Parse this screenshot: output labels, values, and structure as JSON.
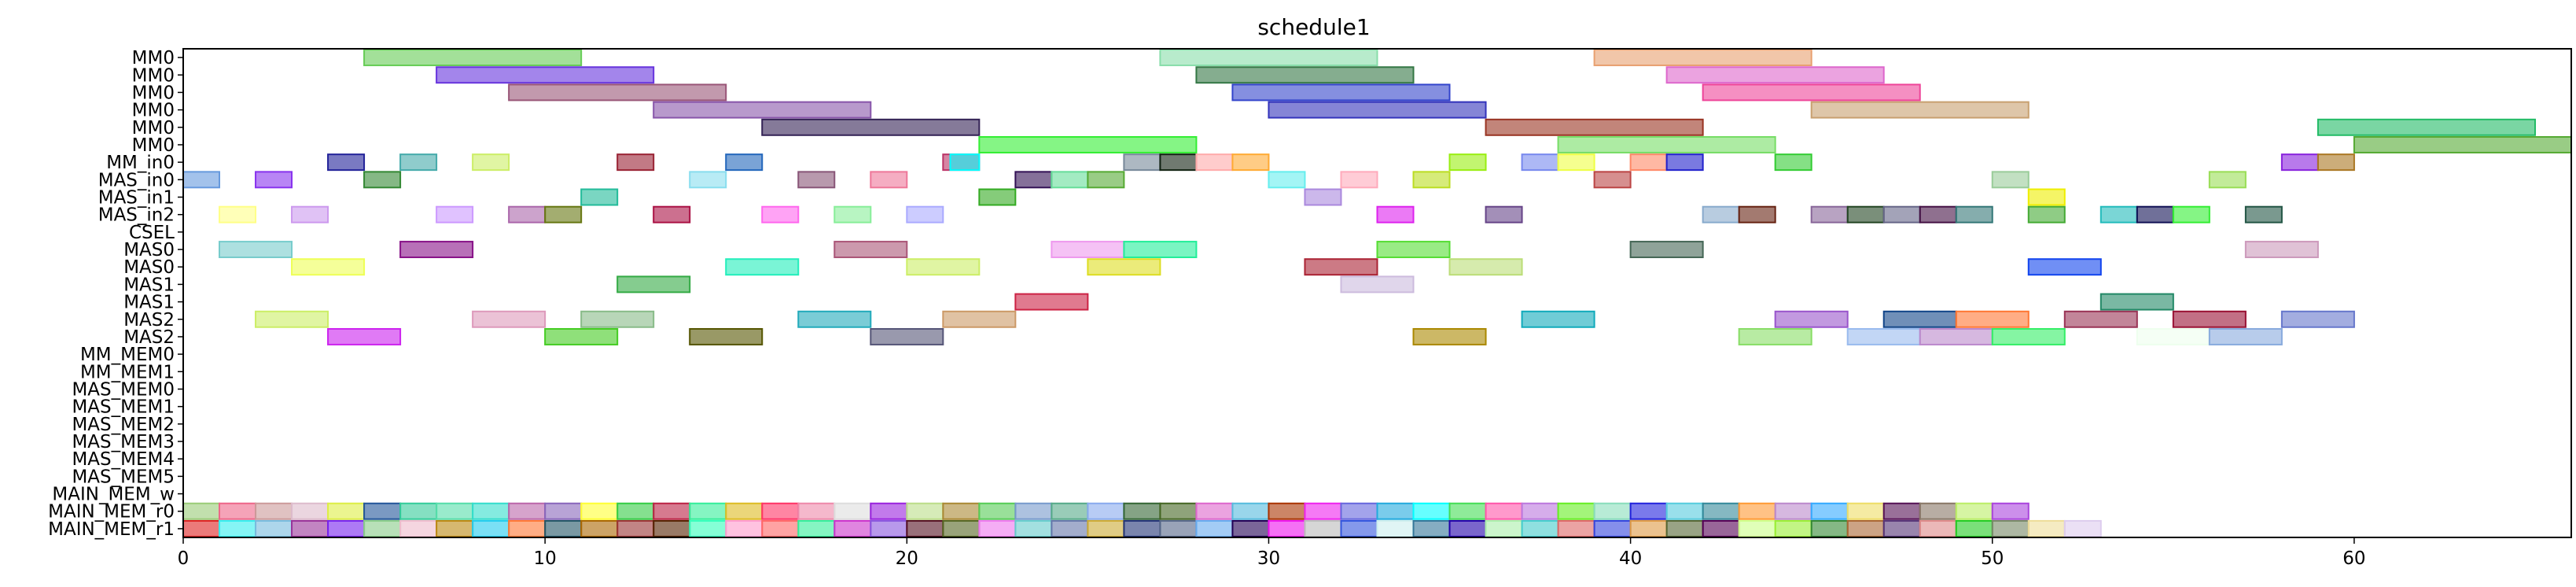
{
  "chart_data": {
    "type": "gantt",
    "title": "schedule1",
    "xlim": [
      0,
      66
    ],
    "x_ticks": [
      "0",
      "10",
      "20",
      "30",
      "40",
      "50",
      "60"
    ],
    "x_tick_values": [
      0,
      10,
      20,
      30,
      40,
      50,
      60
    ],
    "rows": [
      "MM0",
      "MM0",
      "MM0",
      "MM0",
      "MM0",
      "MM0",
      "MM_in0",
      "MAS_in0",
      "MAS_in1",
      "MAS_in2",
      "CSEL",
      "MAS0",
      "MAS0",
      "MAS1",
      "MAS1",
      "MAS2",
      "MAS2",
      "MM_MEM0",
      "MM_MEM1",
      "MAS_MEM0",
      "MAS_MEM1",
      "MAS_MEM2",
      "MAS_MEM3",
      "MAS_MEM4",
      "MAS_MEM5",
      "MAIN_MEM_w",
      "MAIN_MEM_r0",
      "MAIN_MEM_r1"
    ],
    "bars": [
      {
        "row": 0,
        "start": 5,
        "end": 11,
        "color": "#66cc55"
      },
      {
        "row": 0,
        "start": 27,
        "end": 33,
        "color": "#88ddaa"
      },
      {
        "row": 0,
        "start": 39,
        "end": 45,
        "color": "#e8a070"
      },
      {
        "row": 1,
        "start": 7,
        "end": 13,
        "color": "#6633dd"
      },
      {
        "row": 1,
        "start": 28,
        "end": 34,
        "color": "#337744"
      },
      {
        "row": 1,
        "start": 41,
        "end": 47,
        "color": "#dd66cc"
      },
      {
        "row": 2,
        "start": 9,
        "end": 15,
        "color": "#995577"
      },
      {
        "row": 2,
        "start": 29,
        "end": 35,
        "color": "#3344cc"
      },
      {
        "row": 2,
        "start": 42,
        "end": 48,
        "color": "#ee4499"
      },
      {
        "row": 3,
        "start": 13,
        "end": 19,
        "color": "#8855aa"
      },
      {
        "row": 3,
        "start": 30,
        "end": 36,
        "color": "#3333bb"
      },
      {
        "row": 3,
        "start": 45,
        "end": 51,
        "color": "#c8a070"
      },
      {
        "row": 4,
        "start": 16,
        "end": 22,
        "color": "#332255"
      },
      {
        "row": 4,
        "start": 36,
        "end": 42,
        "color": "#993322"
      },
      {
        "row": 4,
        "start": 59,
        "end": 65,
        "color": "#22bb66"
      },
      {
        "row": 5,
        "start": 22,
        "end": 28,
        "color": "#33ee33"
      },
      {
        "row": 5,
        "start": 38,
        "end": 44,
        "color": "#77dd66"
      },
      {
        "row": 5,
        "start": 60,
        "end": 66,
        "color": "#55aa33"
      },
      {
        "row": 6,
        "start": 4,
        "end": 5,
        "color": "#222299"
      },
      {
        "row": 6,
        "start": 6,
        "end": 7,
        "color": "#44aaaa"
      },
      {
        "row": 6,
        "start": 8,
        "end": 9,
        "color": "#ccee66"
      },
      {
        "row": 6,
        "start": 12,
        "end": 13,
        "color": "#992233"
      },
      {
        "row": 6,
        "start": 15,
        "end": 16,
        "color": "#2266bb"
      },
      {
        "row": 6,
        "start": 21,
        "end": 22,
        "color": "#bb3366"
      },
      {
        "row": 6,
        "start": 21.2,
        "end": 22,
        "color": "#00ffff"
      },
      {
        "row": 6,
        "start": 26,
        "end": 27,
        "color": "#778899"
      },
      {
        "row": 6,
        "start": 27,
        "end": 28,
        "color": "#112211"
      },
      {
        "row": 6,
        "start": 28,
        "end": 29,
        "color": "#ffaaaa"
      },
      {
        "row": 6,
        "start": 29,
        "end": 30,
        "color": "#ffaa33"
      },
      {
        "row": 6,
        "start": 35,
        "end": 36,
        "color": "#99ee11"
      },
      {
        "row": 6,
        "start": 37,
        "end": 38,
        "color": "#7788ee"
      },
      {
        "row": 6,
        "start": 38,
        "end": 39,
        "color": "#eeff44"
      },
      {
        "row": 6,
        "start": 40,
        "end": 41,
        "color": "#ff8866"
      },
      {
        "row": 6,
        "start": 41,
        "end": 42,
        "color": "#2222cc"
      },
      {
        "row": 6,
        "start": 44,
        "end": 45,
        "color": "#33cc33"
      },
      {
        "row": 6,
        "start": 58,
        "end": 59,
        "color": "#8822dd"
      },
      {
        "row": 6,
        "start": 59,
        "end": 60,
        "color": "#aa7722"
      },
      {
        "row": 7,
        "start": 0,
        "end": 1,
        "color": "#6699dd"
      },
      {
        "row": 7,
        "start": 2,
        "end": 3,
        "color": "#8833ee"
      },
      {
        "row": 7,
        "start": 5,
        "end": 6,
        "color": "#338833"
      },
      {
        "row": 7,
        "start": 14,
        "end": 15,
        "color": "#88ddee"
      },
      {
        "row": 7,
        "start": 17,
        "end": 18,
        "color": "#885577"
      },
      {
        "row": 7,
        "start": 19,
        "end": 20,
        "color": "#ee7799"
      },
      {
        "row": 7,
        "start": 23,
        "end": 24,
        "color": "#331155"
      },
      {
        "row": 7,
        "start": 24,
        "end": 25,
        "color": "#66dd99"
      },
      {
        "row": 7,
        "start": 25,
        "end": 26,
        "color": "#55aa33"
      },
      {
        "row": 7,
        "start": 30,
        "end": 31,
        "color": "#66eeee"
      },
      {
        "row": 7,
        "start": 32,
        "end": 33,
        "color": "#ffaabb"
      },
      {
        "row": 7,
        "start": 34,
        "end": 35,
        "color": "#bbdd22"
      },
      {
        "row": 7,
        "start": 39,
        "end": 40,
        "color": "#bb4444"
      },
      {
        "row": 7,
        "start": 50,
        "end": 51,
        "color": "#99cc99"
      },
      {
        "row": 7,
        "start": 56,
        "end": 57,
        "color": "#99dd55"
      },
      {
        "row": 8,
        "start": 11,
        "end": 12,
        "color": "#22bb99"
      },
      {
        "row": 8,
        "start": 22,
        "end": 23,
        "color": "#33aa22"
      },
      {
        "row": 8,
        "start": 31,
        "end": 32,
        "color": "#aa88dd"
      },
      {
        "row": 8,
        "start": 51,
        "end": 52,
        "color": "#eeee00"
      },
      {
        "row": 9,
        "start": 1,
        "end": 2,
        "color": "#ffff88"
      },
      {
        "row": 9,
        "start": 3,
        "end": 4,
        "color": "#cc99ee"
      },
      {
        "row": 9,
        "start": 7,
        "end": 8,
        "color": "#cc99ff"
      },
      {
        "row": 9,
        "start": 9,
        "end": 10,
        "color": "#aa66aa"
      },
      {
        "row": 9,
        "start": 10,
        "end": 11,
        "color": "#667711"
      },
      {
        "row": 9,
        "start": 13,
        "end": 14,
        "color": "#aa1144"
      },
      {
        "row": 9,
        "start": 16,
        "end": 17,
        "color": "#ff66ee"
      },
      {
        "row": 9,
        "start": 18,
        "end": 19,
        "color": "#88ee99"
      },
      {
        "row": 9,
        "start": 20,
        "end": 21,
        "color": "#aaaaff"
      },
      {
        "row": 9,
        "start": 33,
        "end": 34,
        "color": "#dd22ee"
      },
      {
        "row": 9,
        "start": 36,
        "end": 37,
        "color": "#664488"
      },
      {
        "row": 9,
        "start": 42,
        "end": 43,
        "color": "#88aacc"
      },
      {
        "row": 9,
        "start": 43,
        "end": 44,
        "color": "#662211"
      },
      {
        "row": 9,
        "start": 45,
        "end": 46,
        "color": "#886699"
      },
      {
        "row": 9,
        "start": 46,
        "end": 47,
        "color": "#224422"
      },
      {
        "row": 9,
        "start": 47,
        "end": 48,
        "color": "#666688"
      },
      {
        "row": 9,
        "start": 48,
        "end": 49,
        "color": "#441144"
      },
      {
        "row": 9,
        "start": 49,
        "end": 50,
        "color": "#337777"
      },
      {
        "row": 9,
        "start": 51,
        "end": 52,
        "color": "#44aa33"
      },
      {
        "row": 9,
        "start": 53,
        "end": 54,
        "color": "#22bbbb"
      },
      {
        "row": 9,
        "start": 54,
        "end": 55,
        "color": "#111155"
      },
      {
        "row": 9,
        "start": 55,
        "end": 56,
        "color": "#33ee33"
      },
      {
        "row": 9,
        "start": 57,
        "end": 58,
        "color": "#225544"
      },
      {
        "row": 11,
        "start": 1,
        "end": 3,
        "color": "#77cccc"
      },
      {
        "row": 11,
        "start": 6,
        "end": 8,
        "color": "#881188"
      },
      {
        "row": 11,
        "start": 18,
        "end": 20,
        "color": "#aa5577"
      },
      {
        "row": 11,
        "start": 24,
        "end": 26,
        "color": "#ee99ee"
      },
      {
        "row": 11,
        "start": 26,
        "end": 28,
        "color": "#22ee99"
      },
      {
        "row": 11,
        "start": 33,
        "end": 35,
        "color": "#55dd33"
      },
      {
        "row": 11,
        "start": 40,
        "end": 42,
        "color": "#446655"
      },
      {
        "row": 11,
        "start": 57,
        "end": 59,
        "color": "#cc99bb"
      },
      {
        "row": 12,
        "start": 3,
        "end": 5,
        "color": "#eeff55"
      },
      {
        "row": 12,
        "start": 15,
        "end": 17,
        "color": "#22eebb"
      },
      {
        "row": 12,
        "start": 20,
        "end": 22,
        "color": "#ccee66"
      },
      {
        "row": 12,
        "start": 25,
        "end": 27,
        "color": "#dddd22"
      },
      {
        "row": 12,
        "start": 31,
        "end": 33,
        "color": "#aa2233"
      },
      {
        "row": 12,
        "start": 35,
        "end": 37,
        "color": "#bbdd77"
      },
      {
        "row": 12,
        "start": 51,
        "end": 53,
        "color": "#1144ee"
      },
      {
        "row": 13,
        "start": 12,
        "end": 14,
        "color": "#33aa44"
      },
      {
        "row": 13,
        "start": 32,
        "end": 34,
        "color": "#ccbbdd"
      },
      {
        "row": 14,
        "start": 23,
        "end": 25,
        "color": "#cc2244"
      },
      {
        "row": 14,
        "start": 53,
        "end": 55,
        "color": "#228866"
      },
      {
        "row": 15,
        "start": 2,
        "end": 4,
        "color": "#ccee66"
      },
      {
        "row": 15,
        "start": 8,
        "end": 10,
        "color": "#dd99bb"
      },
      {
        "row": 15,
        "start": 11,
        "end": 13,
        "color": "#88bb88"
      },
      {
        "row": 15,
        "start": 17,
        "end": 19,
        "color": "#22aabb"
      },
      {
        "row": 15,
        "start": 21,
        "end": 23,
        "color": "#cc9966"
      },
      {
        "row": 15,
        "start": 37,
        "end": 39,
        "color": "#11aabb"
      },
      {
        "row": 15,
        "start": 44,
        "end": 46,
        "color": "#9955cc"
      },
      {
        "row": 15,
        "start": 47,
        "end": 49,
        "color": "#114488"
      },
      {
        "row": 15,
        "start": 49,
        "end": 51,
        "color": "#ff7733"
      },
      {
        "row": 15,
        "start": 52,
        "end": 54,
        "color": "#993355"
      },
      {
        "row": 15,
        "start": 55,
        "end": 57,
        "color": "#991133"
      },
      {
        "row": 15,
        "start": 58,
        "end": 60,
        "color": "#6677cc"
      },
      {
        "row": 16,
        "start": 4,
        "end": 6,
        "color": "#cc22ee"
      },
      {
        "row": 16,
        "start": 10,
        "end": 12,
        "color": "#44cc22"
      },
      {
        "row": 16,
        "start": 14,
        "end": 16,
        "color": "#555500"
      },
      {
        "row": 16,
        "start": 19,
        "end": 21,
        "color": "#555577"
      },
      {
        "row": 16,
        "start": 34,
        "end": 36,
        "color": "#aa8800"
      },
      {
        "row": 16,
        "start": 43,
        "end": 45,
        "color": "#88dd66"
      },
      {
        "row": 16,
        "start": 46,
        "end": 48,
        "color": "#99bbee"
      },
      {
        "row": 16,
        "start": 48,
        "end": 50,
        "color": "#bb88cc"
      },
      {
        "row": 16,
        "start": 50,
        "end": 52,
        "color": "#33ee66"
      },
      {
        "row": 16,
        "start": 54,
        "end": 56,
        "color": "#eeffee"
      },
      {
        "row": 16,
        "start": 56,
        "end": 58,
        "color": "#88aadd"
      }
    ],
    "main_mem_r0_colors": [
      "#99cc77",
      "#ee6688",
      "#cc9999",
      "#ddbbcc",
      "#ddee44",
      "#225599",
      "#33cc99",
      "#55ddaa",
      "#33ddcc",
      "#bb66aa",
      "#8866bb",
      "#ffff33",
      "#33cc44",
      "#bb2244",
      "#33ee99",
      "#ddbb22",
      "#ff3366",
      "#ee88aa",
      "#dddddd",
      "#9922dd",
      "#bbdd88",
      "#aa8833",
      "#55cc55",
      "#7799cc",
      "#55aa88",
      "#88aaee",
      "#336633",
      "#446622",
      "#dd66cc",
      "#55bbdd",
      "#aa3300",
      "#ee22ee",
      "#6666dd",
      "#22aadd",
      "#00ffff",
      "#44dd55",
      "#ff55aa",
      "#bb77dd",
      "#66ee22",
      "#88ddbb",
      "#2222dd",
      "#55ccdd",
      "#338899",
      "#ff9933",
      "#bb88cc",
      "#33aaff",
      "#eedd66",
      "#551155",
      "#887766",
      "#bbee66",
      "#aa44dd"
    ],
    "main_mem_r1_colors": [
      "#dd2222",
      "#33eeee",
      "#77bbdd",
      "#993399",
      "#7722ee",
      "#88cc88",
      "#eebbcc",
      "#bb8811",
      "#22ccee",
      "#ff7733",
      "#225566",
      "#aa6600",
      "#993333",
      "#552200",
      "#33ffbb",
      "#ff99cc",
      "#ff6666",
      "#33ee99",
      "#cc33cc",
      "#8855dd",
      "#551122",
      "#556622",
      "#ee77ee",
      "#66cccc",
      "#6677aa",
      "#ccaa33",
      "#223377",
      "#556688",
      "#66aaee",
      "#220055",
      "#ee11ee",
      "#bbbbbb",
      "#3355dd",
      "#cceeee",
      "#337799",
      "#2200aa",
      "#aaeeaa",
      "#44cccc",
      "#dd6666",
      "#3344dd",
      "#dd9944",
      "#556633",
      "#550055",
      "#ccff88",
      "#99ee33",
      "#338833",
      "#aa6633",
      "#553377",
      "#dd8888",
      "#22cc22",
      "#778866",
      "#eedd99",
      "#ddccee"
    ]
  }
}
